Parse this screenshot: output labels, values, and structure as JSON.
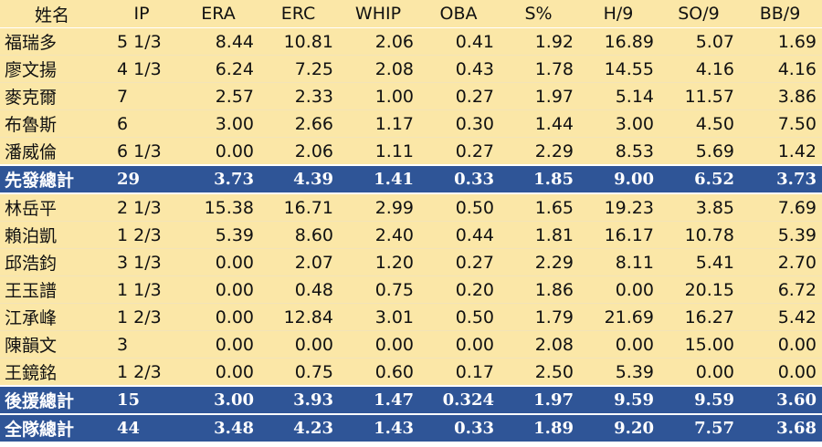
{
  "columns": [
    "姓名",
    "IP",
    "ERA",
    "ERC",
    "WHIP",
    "OBA",
    "S%",
    "H/9",
    "SO/9",
    "BB/9"
  ],
  "rows": [
    {
      "kind": "player",
      "cells": [
        "福瑞多",
        "5 1/3",
        "8.44",
        "10.81",
        "2.06",
        "0.41",
        "1.92",
        "16.89",
        "5.07",
        "1.69"
      ]
    },
    {
      "kind": "player",
      "cells": [
        "廖文揚",
        "4 1/3",
        "6.24",
        "7.25",
        "2.08",
        "0.43",
        "1.78",
        "14.55",
        "4.16",
        "4.16"
      ]
    },
    {
      "kind": "player",
      "cells": [
        "麥克爾",
        "7",
        "2.57",
        "2.33",
        "1.00",
        "0.27",
        "1.97",
        "5.14",
        "11.57",
        "3.86"
      ]
    },
    {
      "kind": "player",
      "cells": [
        "布魯斯",
        "6",
        "3.00",
        "2.66",
        "1.17",
        "0.30",
        "1.44",
        "3.00",
        "4.50",
        "7.50"
      ]
    },
    {
      "kind": "player",
      "cells": [
        "潘威倫",
        "6 1/3",
        "0.00",
        "2.06",
        "1.11",
        "0.27",
        "2.29",
        "8.53",
        "5.69",
        "1.42"
      ]
    },
    {
      "kind": "total",
      "cells": [
        "先發總計",
        "29",
        "3.73",
        "4.39",
        "1.41",
        "0.33",
        "1.85",
        "9.00",
        "6.52",
        "3.73"
      ]
    },
    {
      "kind": "player",
      "cells": [
        "林岳平",
        "2 1/3",
        "15.38",
        "16.71",
        "2.99",
        "0.50",
        "1.65",
        "19.23",
        "3.85",
        "7.69"
      ]
    },
    {
      "kind": "player",
      "cells": [
        "賴泊凱",
        "1 2/3",
        "5.39",
        "8.60",
        "2.40",
        "0.44",
        "1.81",
        "16.17",
        "10.78",
        "5.39"
      ]
    },
    {
      "kind": "player",
      "cells": [
        "邱浩鈞",
        "3 1/3",
        "0.00",
        "2.07",
        "1.20",
        "0.27",
        "2.29",
        "8.11",
        "5.41",
        "2.70"
      ]
    },
    {
      "kind": "player",
      "cells": [
        "王玉譜",
        "1 1/3",
        "0.00",
        "0.48",
        "0.75",
        "0.20",
        "1.86",
        "0.00",
        "20.15",
        "6.72"
      ]
    },
    {
      "kind": "player",
      "cells": [
        "江承峰",
        "1 2/3",
        "0.00",
        "12.84",
        "3.01",
        "0.50",
        "1.79",
        "21.69",
        "16.27",
        "5.42"
      ]
    },
    {
      "kind": "player",
      "cells": [
        "陳韻文",
        "3",
        "0.00",
        "0.00",
        "0.00",
        "0.00",
        "2.08",
        "0.00",
        "15.00",
        "0.00"
      ]
    },
    {
      "kind": "player",
      "cells": [
        "王鏡銘",
        "1 2/3",
        "0.00",
        "0.75",
        "0.60",
        "0.17",
        "2.50",
        "5.39",
        "0.00",
        "0.00"
      ]
    },
    {
      "kind": "total",
      "cells": [
        "後援總計",
        "15",
        "3.00",
        "3.93",
        "1.47",
        "0.324",
        "1.97",
        "9.59",
        "9.59",
        "3.60"
      ]
    },
    {
      "kind": "total",
      "cells": [
        "全隊總計",
        "44",
        "3.48",
        "4.23",
        "1.43",
        "0.33",
        "1.89",
        "9.20",
        "7.57",
        "3.68"
      ]
    }
  ]
}
